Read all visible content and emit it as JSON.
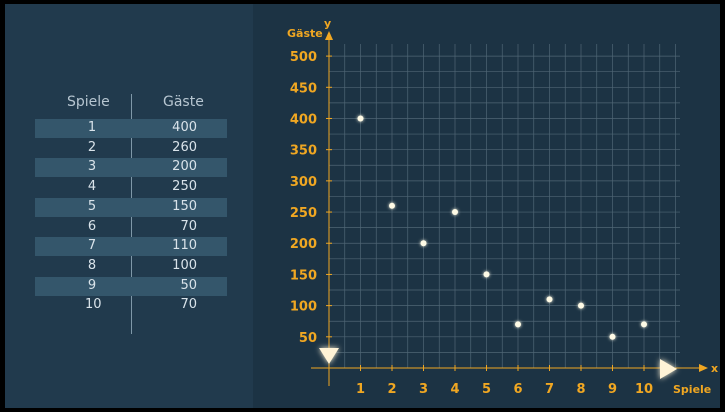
{
  "table": {
    "headers": [
      "Spiele",
      "Gäste"
    ],
    "rows": [
      {
        "spiele": "1",
        "gaeste": "400"
      },
      {
        "spiele": "2",
        "gaeste": "260"
      },
      {
        "spiele": "3",
        "gaeste": "200"
      },
      {
        "spiele": "4",
        "gaeste": "250"
      },
      {
        "spiele": "5",
        "gaeste": "150"
      },
      {
        "spiele": "6",
        "gaeste": "70"
      },
      {
        "spiele": "7",
        "gaeste": "110"
      },
      {
        "spiele": "8",
        "gaeste": "100"
      },
      {
        "spiele": "9",
        "gaeste": "50"
      },
      {
        "spiele": "10",
        "gaeste": "70"
      }
    ]
  },
  "chart_data": {
    "type": "scatter",
    "x": [
      1,
      2,
      3,
      4,
      5,
      6,
      7,
      8,
      9,
      10
    ],
    "y": [
      400,
      260,
      200,
      250,
      150,
      70,
      110,
      100,
      50,
      70
    ],
    "x_axis_letter": "x",
    "y_axis_letter": "y",
    "xlabel": "Spiele",
    "ylabel": "Gäste",
    "xticks": [
      "1",
      "2",
      "3",
      "4",
      "5",
      "6",
      "7",
      "8",
      "9",
      "10"
    ],
    "yticks": [
      "50",
      "100",
      "150",
      "200",
      "250",
      "300",
      "350",
      "400",
      "450",
      "500"
    ],
    "xlim": [
      0,
      11.2
    ],
    "ylim": [
      0,
      520
    ],
    "grid": true,
    "colors": {
      "tick_label": "#f0a722",
      "axis_small": "#f0a722",
      "grid": "#4f6675",
      "arrow": "#fff3d6",
      "glow": "#ffd27a",
      "point": "#fffbe6"
    }
  }
}
